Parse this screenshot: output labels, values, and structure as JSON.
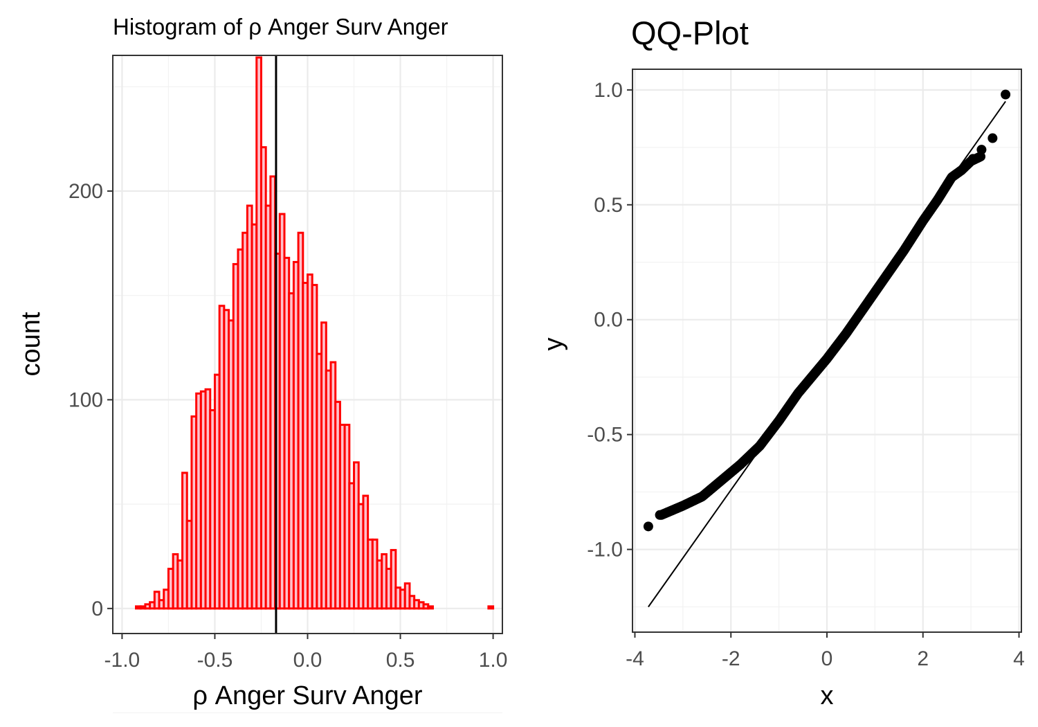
{
  "chart_data": [
    {
      "type": "bar",
      "subtype": "histogram",
      "title": "Histogram of ρ Anger Surv Anger",
      "xlabel": "ρ Anger Surv Anger",
      "ylabel": "count",
      "xlim": [
        -1.05,
        1.05
      ],
      "ylim": [
        -12,
        265
      ],
      "x_ticks": [
        -1.0,
        -0.5,
        0.0,
        0.5,
        1.0
      ],
      "x_tick_labels": [
        "-1.0",
        "-0.5",
        "0.0",
        "0.5",
        "1.0"
      ],
      "y_ticks": [
        0,
        100,
        200
      ],
      "y_tick_labels": [
        "0",
        "100",
        "200"
      ],
      "grid": true,
      "bar_fill": "#ffc0cb",
      "bar_outline": "#ff0000",
      "vline": {
        "x": -0.17,
        "color": "#000000"
      },
      "bin_width": 0.025,
      "bins": [
        {
          "x0": -0.925,
          "count": 1
        },
        {
          "x0": -0.9,
          "count": 1
        },
        {
          "x0": -0.875,
          "count": 2
        },
        {
          "x0": -0.85,
          "count": 3
        },
        {
          "x0": -0.825,
          "count": 8
        },
        {
          "x0": -0.8,
          "count": 4
        },
        {
          "x0": -0.775,
          "count": 9
        },
        {
          "x0": -0.75,
          "count": 19
        },
        {
          "x0": -0.725,
          "count": 26
        },
        {
          "x0": -0.7,
          "count": 23
        },
        {
          "x0": -0.675,
          "count": 65
        },
        {
          "x0": -0.65,
          "count": 42
        },
        {
          "x0": -0.625,
          "count": 92
        },
        {
          "x0": -0.6,
          "count": 103
        },
        {
          "x0": -0.575,
          "count": 104
        },
        {
          "x0": -0.55,
          "count": 105
        },
        {
          "x0": -0.525,
          "count": 95
        },
        {
          "x0": -0.5,
          "count": 112
        },
        {
          "x0": -0.475,
          "count": 145
        },
        {
          "x0": -0.45,
          "count": 143
        },
        {
          "x0": -0.425,
          "count": 138
        },
        {
          "x0": -0.4,
          "count": 165
        },
        {
          "x0": -0.375,
          "count": 172
        },
        {
          "x0": -0.35,
          "count": 180
        },
        {
          "x0": -0.325,
          "count": 193
        },
        {
          "x0": -0.3,
          "count": 184
        },
        {
          "x0": -0.275,
          "count": 264
        },
        {
          "x0": -0.25,
          "count": 221
        },
        {
          "x0": -0.225,
          "count": 193
        },
        {
          "x0": -0.2,
          "count": 207
        },
        {
          "x0": -0.175,
          "count": 170
        },
        {
          "x0": -0.15,
          "count": 189
        },
        {
          "x0": -0.125,
          "count": 168
        },
        {
          "x0": -0.1,
          "count": 151
        },
        {
          "x0": -0.075,
          "count": 166
        },
        {
          "x0": -0.05,
          "count": 180
        },
        {
          "x0": -0.025,
          "count": 156
        },
        {
          "x0": 0.0,
          "count": 160
        },
        {
          "x0": 0.025,
          "count": 155
        },
        {
          "x0": 0.05,
          "count": 122
        },
        {
          "x0": 0.075,
          "count": 137
        },
        {
          "x0": 0.1,
          "count": 114
        },
        {
          "x0": 0.125,
          "count": 118
        },
        {
          "x0": 0.15,
          "count": 99
        },
        {
          "x0": 0.175,
          "count": 88
        },
        {
          "x0": 0.2,
          "count": 88
        },
        {
          "x0": 0.225,
          "count": 60
        },
        {
          "x0": 0.25,
          "count": 70
        },
        {
          "x0": 0.275,
          "count": 50
        },
        {
          "x0": 0.3,
          "count": 54
        },
        {
          "x0": 0.325,
          "count": 33
        },
        {
          "x0": 0.35,
          "count": 33
        },
        {
          "x0": 0.375,
          "count": 23
        },
        {
          "x0": 0.4,
          "count": 26
        },
        {
          "x0": 0.425,
          "count": 19
        },
        {
          "x0": 0.45,
          "count": 28
        },
        {
          "x0": 0.475,
          "count": 10
        },
        {
          "x0": 0.5,
          "count": 9
        },
        {
          "x0": 0.525,
          "count": 12
        },
        {
          "x0": 0.55,
          "count": 6
        },
        {
          "x0": 0.575,
          "count": 4
        },
        {
          "x0": 0.6,
          "count": 3
        },
        {
          "x0": 0.625,
          "count": 2
        },
        {
          "x0": 0.65,
          "count": 1
        },
        {
          "x0": 0.675,
          "count": 0
        },
        {
          "x0": 0.7,
          "count": 0
        },
        {
          "x0": 0.725,
          "count": 0
        },
        {
          "x0": 0.75,
          "count": 0
        },
        {
          "x0": 0.775,
          "count": 0
        },
        {
          "x0": 0.8,
          "count": 0
        },
        {
          "x0": 0.825,
          "count": 0
        },
        {
          "x0": 0.85,
          "count": 0
        },
        {
          "x0": 0.875,
          "count": 0
        },
        {
          "x0": 0.9,
          "count": 0
        },
        {
          "x0": 0.925,
          "count": 0
        },
        {
          "x0": 0.95,
          "count": 0
        },
        {
          "x0": 0.975,
          "count": 1
        }
      ]
    },
    {
      "type": "scatter",
      "subtype": "qq-plot",
      "title": "QQ-Plot",
      "xlabel": "x",
      "ylabel": "y",
      "xlim": [
        -4.05,
        4.05
      ],
      "ylim": [
        -1.36,
        1.09
      ],
      "x_ticks": [
        -4,
        -2,
        0,
        2,
        4
      ],
      "x_tick_labels": [
        "-4",
        "-2",
        "0",
        "2",
        "4"
      ],
      "y_ticks": [
        -1.0,
        -0.5,
        0.0,
        0.5,
        1.0
      ],
      "y_tick_labels": [
        "-1.0",
        "-0.5",
        "0.0",
        "0.5",
        "1.0"
      ],
      "grid": true,
      "point_color": "#000000",
      "reference_line": {
        "x": [
          -3.72,
          3.72
        ],
        "y": [
          -1.25,
          0.95
        ]
      },
      "curve_knots": {
        "x": [
          -3.45,
          -3.0,
          -2.6,
          -2.2,
          -1.8,
          -1.4,
          -1.0,
          -0.6,
          -0.2,
          0.0,
          0.4,
          0.8,
          1.2,
          1.6,
          2.0,
          2.3,
          2.6,
          2.8,
          3.0,
          3.2
        ],
        "y": [
          -0.85,
          -0.81,
          -0.77,
          -0.7,
          -0.63,
          -0.55,
          -0.44,
          -0.32,
          -0.22,
          -0.17,
          -0.06,
          0.06,
          0.18,
          0.3,
          0.43,
          0.52,
          0.62,
          0.65,
          0.69,
          0.71
        ]
      },
      "extreme_points": [
        {
          "x": -3.72,
          "y": -0.9
        },
        {
          "x": -3.48,
          "y": -0.85
        },
        {
          "x": 3.04,
          "y": 0.7
        },
        {
          "x": 3.22,
          "y": 0.74
        },
        {
          "x": 3.45,
          "y": 0.79
        },
        {
          "x": 3.72,
          "y": 0.98
        }
      ]
    }
  ]
}
